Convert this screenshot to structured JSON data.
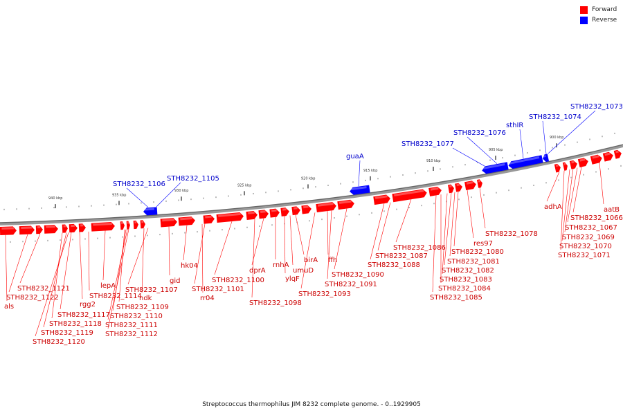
{
  "legend": {
    "forward": {
      "label": "Forward",
      "color": "#ff0000"
    },
    "reverse": {
      "label": "Reverse",
      "color": "#0000ff"
    }
  },
  "caption": "Streptococcus thermophilus JIM 8232 complete genome. - 0..1929905",
  "ticks": [
    "940 kbp",
    "935 kbp",
    "930 kbp",
    "925 kbp",
    "920 kbp",
    "915 kbp",
    "910 kbp",
    "905 kbp",
    "900 kbp"
  ],
  "forward_labels": [
    "als",
    "STH8232_1122",
    "STH8232_1121",
    "STH8232_1120",
    "STH8232_1119",
    "STH8232_1118",
    "STH8232_1117",
    "rgg2",
    "STH8232_1114",
    "lepA",
    "STH8232_1112",
    "STH8232_1111",
    "STH8232_1110",
    "STH8232_1109",
    "ndk",
    "STH8232_1107",
    "gid",
    "hk04",
    "rr04",
    "STH8232_1101",
    "STH8232_1100",
    "STH8232_1098",
    "dprA",
    "rnhA",
    "ylqF",
    "umuD",
    "birA",
    "STH8232_1093",
    "ffh",
    "STH8232_1091",
    "STH8232_1090",
    "STH8232_1088",
    "STH8232_1087",
    "STH8232_1086",
    "STH8232_1085",
    "STH8232_1084",
    "STH8232_1083",
    "STH8232_1082",
    "STH8232_1081",
    "STH8232_1080",
    "res97",
    "STH8232_1078",
    "adhA",
    "STH8232_1071",
    "STH8232_1070",
    "STH8232_1069",
    "STH8232_1067",
    "STH8232_1066",
    "aatB"
  ],
  "reverse_labels": [
    "STH8232_1106",
    "STH8232_1105",
    "guaA",
    "STH8232_1077",
    "STH8232_1076",
    "sthIR",
    "STH8232_1074",
    "STH8232_1073"
  ]
}
